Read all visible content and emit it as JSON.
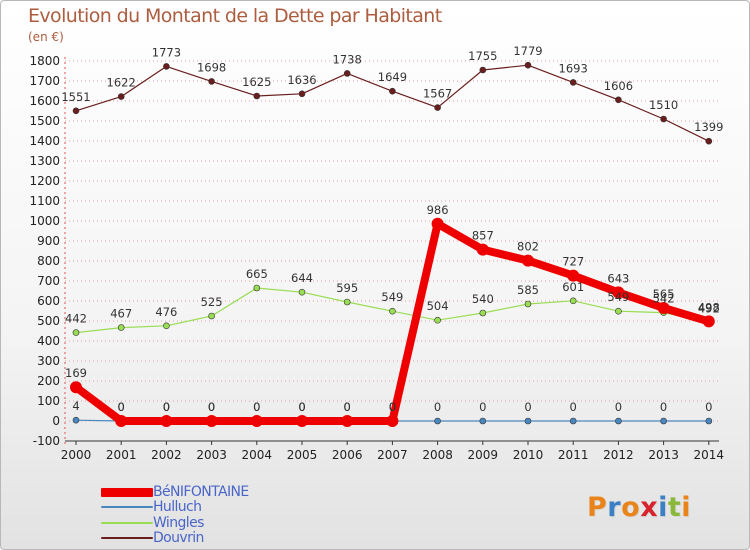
{
  "header": {
    "title": "Evolution du Montant de la Dette par Habitant",
    "unit": "(en €)"
  },
  "logo": {
    "text": "Proxiti"
  },
  "colors": {
    "benifontaine": "#ee0000",
    "hulluch": "#4b87bf",
    "wingles": "#99dd55",
    "douvrin": "#6b1e1e",
    "grid": "#e0a0a0",
    "title": "#ad5d3f",
    "legend_text": "#4a66c8"
  },
  "chart_data": {
    "type": "line",
    "title": "Evolution du Montant de la Dette par Habitant",
    "ylabel": "(en €)",
    "xlabel": "",
    "x": [
      "2000",
      "2001",
      "2002",
      "2003",
      "2004",
      "2005",
      "2006",
      "2007",
      "2008",
      "2009",
      "2010",
      "2011",
      "2012",
      "2013",
      "2014"
    ],
    "ylim": [
      -100,
      1800
    ],
    "yticks": [
      -100,
      0,
      100,
      200,
      300,
      400,
      500,
      600,
      700,
      800,
      900,
      1000,
      1100,
      1200,
      1300,
      1400,
      1500,
      1600,
      1700,
      1800
    ],
    "grid": "horizontal dotted",
    "legend": "bottom-left",
    "series": [
      {
        "name": "BéNIFONTAINE",
        "key": "benifontaine",
        "values": [
          169,
          0,
          0,
          0,
          0,
          0,
          0,
          0,
          986,
          857,
          802,
          727,
          643,
          565,
          498
        ]
      },
      {
        "name": "Hulluch",
        "key": "hulluch",
        "values": [
          4,
          0,
          0,
          0,
          0,
          0,
          0,
          0,
          0,
          0,
          0,
          0,
          0,
          0,
          0
        ]
      },
      {
        "name": "Wingles",
        "key": "wingles",
        "values": [
          442,
          467,
          476,
          525,
          665,
          644,
          595,
          549,
          504,
          540,
          585,
          601,
          549,
          542,
          492
        ]
      },
      {
        "name": "Douvrin",
        "key": "douvrin",
        "values": [
          1551,
          1622,
          1773,
          1698,
          1625,
          1636,
          1738,
          1649,
          1567,
          1755,
          1779,
          1693,
          1606,
          1510,
          1399
        ]
      }
    ]
  }
}
